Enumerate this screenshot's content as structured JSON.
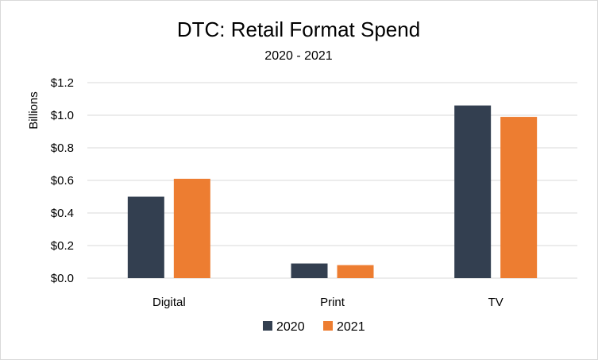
{
  "chart_data": {
    "type": "bar",
    "title": "DTC: Retail Format Spend",
    "subtitle": "2020 - 2021",
    "xlabel": "",
    "ylabel": "Billions",
    "categories": [
      "Digital",
      "Print",
      "TV"
    ],
    "series": [
      {
        "name": "2020",
        "color": "#333f50",
        "values": [
          0.5,
          0.09,
          1.06
        ]
      },
      {
        "name": "2021",
        "color": "#ed7d31",
        "values": [
          0.61,
          0.08,
          0.99
        ]
      }
    ],
    "ylim": [
      0,
      1.2
    ],
    "yticks": [
      0,
      0.2,
      0.4,
      0.6,
      0.8,
      1.0,
      1.2
    ],
    "ytick_labels": [
      "$0.0",
      "$0.2",
      "$0.4",
      "$0.6",
      "$0.8",
      "$1.0",
      "$1.2"
    ],
    "grid": true,
    "legend_position": "bottom"
  }
}
